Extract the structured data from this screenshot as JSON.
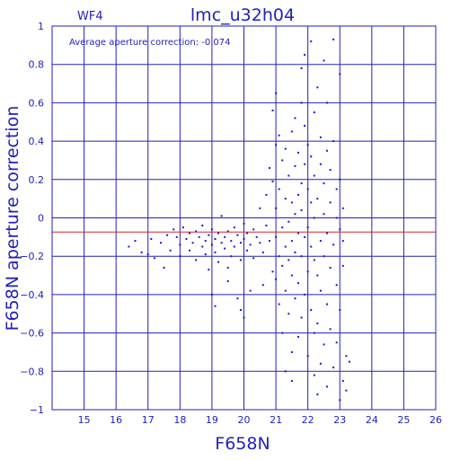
{
  "chart_data": {
    "type": "scatter",
    "title": "lmc_u32h04",
    "panel_label": "WF4",
    "annotation": "Average aperture correction: -0.074",
    "xlabel": "F658N",
    "ylabel": "F658N aperture correction",
    "xlim": [
      14,
      26
    ],
    "ylim": [
      -1,
      1
    ],
    "x_ticks": [
      15,
      16,
      17,
      18,
      19,
      20,
      21,
      22,
      23,
      24,
      25,
      26
    ],
    "y_ticks": [
      1,
      0.8,
      0.6,
      0.4,
      0.2,
      0,
      -0.2,
      -0.4,
      -0.6,
      -0.8,
      -1
    ],
    "x_tick_labels": [
      "15",
      "16",
      "17",
      "18",
      "19",
      "20",
      "21",
      "22",
      "23",
      "24",
      "25",
      "26"
    ],
    "y_tick_labels": [
      "1",
      "0.8",
      "0.6",
      "0.4",
      "0.2",
      "0",
      "−0.2",
      "−0.4",
      "−0.6",
      "−0.8",
      "−1"
    ],
    "grid": true,
    "reference_line_y": -0.074,
    "colors": {
      "axes": "#2222bb",
      "points": "#1a1acc",
      "reference_line": "#dd2222"
    },
    "series": [
      {
        "points": [
          [
            16.4,
            -0.15
          ],
          [
            16.6,
            -0.12
          ],
          [
            16.8,
            -0.18
          ],
          [
            17.0,
            -0.19
          ],
          [
            17.1,
            -0.11
          ],
          [
            17.2,
            -0.21
          ],
          [
            17.4,
            -0.13
          ],
          [
            17.5,
            -0.26
          ],
          [
            17.6,
            -0.09
          ],
          [
            17.7,
            -0.17
          ],
          [
            17.8,
            -0.06
          ],
          [
            17.9,
            -0.1
          ],
          [
            18.0,
            -0.14
          ],
          [
            18.0,
            -0.2
          ],
          [
            18.1,
            -0.05
          ],
          [
            18.2,
            -0.11
          ],
          [
            18.3,
            -0.08
          ],
          [
            18.3,
            -0.17
          ],
          [
            18.4,
            -0.13
          ],
          [
            18.5,
            -0.22
          ],
          [
            18.5,
            -0.07
          ],
          [
            18.6,
            -0.1
          ],
          [
            18.7,
            -0.15
          ],
          [
            18.7,
            -0.04
          ],
          [
            18.8,
            -0.12
          ],
          [
            18.8,
            -0.19
          ],
          [
            18.9,
            -0.09
          ],
          [
            18.9,
            -0.27
          ],
          [
            19.0,
            -0.06
          ],
          [
            19.0,
            -0.14
          ],
          [
            19.1,
            -0.11
          ],
          [
            19.1,
            -0.18
          ],
          [
            19.2,
            -0.08
          ],
          [
            19.2,
            -0.23
          ],
          [
            19.3,
            -0.13
          ],
          [
            19.3,
            0.01
          ],
          [
            19.4,
            -0.1
          ],
          [
            19.4,
            -0.16
          ],
          [
            19.5,
            -0.07
          ],
          [
            19.5,
            -0.26
          ],
          [
            19.6,
            -0.12
          ],
          [
            19.6,
            -0.2
          ],
          [
            19.7,
            -0.05
          ],
          [
            19.7,
            -0.15
          ],
          [
            19.8,
            -0.09
          ],
          [
            19.9,
            -0.13
          ],
          [
            19.9,
            -0.22
          ],
          [
            20.0,
            -0.03
          ],
          [
            20.0,
            -0.11
          ],
          [
            20.1,
            -0.17
          ],
          [
            20.1,
            -0.08
          ],
          [
            20.2,
            -0.14
          ],
          [
            20.3,
            -0.06
          ],
          [
            20.3,
            -0.21
          ],
          [
            20.4,
            -0.1
          ],
          [
            20.5,
            0.05
          ],
          [
            20.5,
            -0.13
          ],
          [
            20.6,
            -0.18
          ],
          [
            20.7,
            -0.04
          ],
          [
            20.8,
            -0.12
          ],
          [
            19.0,
            -0.4
          ],
          [
            19.1,
            -0.46
          ],
          [
            19.9,
            -0.48
          ],
          [
            20.0,
            -0.52
          ],
          [
            19.5,
            -0.33
          ],
          [
            19.8,
            -0.42
          ],
          [
            20.6,
            -0.35
          ],
          [
            20.2,
            -0.38
          ],
          [
            20.7,
            0.12
          ],
          [
            20.8,
            0.26
          ],
          [
            20.9,
            0.19
          ],
          [
            20.9,
            -0.28
          ],
          [
            20.9,
            0.56
          ],
          [
            21.0,
            0.65
          ],
          [
            21.0,
            -0.1
          ],
          [
            21.0,
            -0.32
          ],
          [
            21.0,
            0.05
          ],
          [
            21.0,
            0.38
          ],
          [
            21.1,
            -0.2
          ],
          [
            21.1,
            0.15
          ],
          [
            21.1,
            -0.45
          ],
          [
            21.1,
            0.43
          ],
          [
            21.2,
            -0.05
          ],
          [
            21.2,
            -0.25
          ],
          [
            21.2,
            0.3
          ],
          [
            21.2,
            -0.6
          ],
          [
            21.3,
            0.1
          ],
          [
            21.3,
            -0.15
          ],
          [
            21.3,
            -0.38
          ],
          [
            21.3,
            0.36
          ],
          [
            21.3,
            -0.8
          ],
          [
            21.4,
            -0.02
          ],
          [
            21.4,
            -0.22
          ],
          [
            21.4,
            0.22
          ],
          [
            21.4,
            -0.5
          ],
          [
            21.5,
            0.08
          ],
          [
            21.5,
            -0.12
          ],
          [
            21.5,
            -0.3
          ],
          [
            21.5,
            0.45
          ],
          [
            21.5,
            -0.7
          ],
          [
            21.5,
            -0.85
          ],
          [
            21.6,
            0.02
          ],
          [
            21.6,
            -0.18
          ],
          [
            21.6,
            0.27
          ],
          [
            21.6,
            -0.42
          ],
          [
            21.6,
            0.52
          ],
          [
            21.7,
            -0.08
          ],
          [
            21.7,
            0.12
          ],
          [
            21.7,
            -0.34
          ],
          [
            21.7,
            -0.62
          ],
          [
            21.7,
            0.34
          ],
          [
            21.8,
            0.04
          ],
          [
            21.8,
            -0.2
          ],
          [
            21.8,
            0.6
          ],
          [
            21.8,
            -0.52
          ],
          [
            21.8,
            0.18
          ],
          [
            21.8,
            0.78
          ],
          [
            21.9,
            -0.1
          ],
          [
            21.9,
            0.28
          ],
          [
            21.9,
            -0.4
          ],
          [
            21.9,
            0.48
          ],
          [
            21.9,
            0.85
          ],
          [
            22.0,
            -0.05
          ],
          [
            22.0,
            0.15
          ],
          [
            22.0,
            -0.28
          ],
          [
            22.0,
            0.38
          ],
          [
            22.0,
            -0.72
          ],
          [
            22.1,
            -0.15
          ],
          [
            22.1,
            0.08
          ],
          [
            22.1,
            0.32
          ],
          [
            22.1,
            -0.48
          ],
          [
            22.1,
            0.92
          ],
          [
            22.2,
            0.0
          ],
          [
            22.2,
            -0.22
          ],
          [
            22.2,
            0.22
          ],
          [
            22.2,
            -0.6
          ],
          [
            22.2,
            -0.82
          ],
          [
            22.2,
            0.55
          ],
          [
            22.3,
            -0.3
          ],
          [
            22.3,
            0.1
          ],
          [
            22.3,
            -0.55
          ],
          [
            22.3,
            0.68
          ],
          [
            22.3,
            -0.92
          ],
          [
            22.4,
            -0.12
          ],
          [
            22.4,
            0.28
          ],
          [
            22.4,
            -0.38
          ],
          [
            22.4,
            0.42
          ],
          [
            22.4,
            -0.76
          ],
          [
            22.5,
            0.02
          ],
          [
            22.5,
            -0.2
          ],
          [
            22.5,
            -0.66
          ],
          [
            22.5,
            0.18
          ],
          [
            22.5,
            0.82
          ],
          [
            22.6,
            -0.08
          ],
          [
            22.6,
            0.35
          ],
          [
            22.6,
            -0.45
          ],
          [
            22.6,
            -0.88
          ],
          [
            22.6,
            0.6
          ],
          [
            22.7,
            0.08
          ],
          [
            22.7,
            -0.26
          ],
          [
            22.7,
            -0.58
          ],
          [
            22.7,
            0.25
          ],
          [
            22.8,
            -0.14
          ],
          [
            22.8,
            0.4
          ],
          [
            22.8,
            -0.78
          ],
          [
            22.8,
            0.93
          ],
          [
            22.9,
            0.0
          ],
          [
            22.9,
            -0.35
          ],
          [
            22.9,
            0.15
          ],
          [
            22.9,
            -0.65
          ],
          [
            23.0,
            -0.06
          ],
          [
            23.0,
            0.2
          ],
          [
            23.0,
            -0.48
          ],
          [
            23.0,
            -0.95
          ],
          [
            23.0,
            0.75
          ],
          [
            23.1,
            -0.12
          ],
          [
            23.1,
            -0.25
          ],
          [
            23.1,
            0.05
          ],
          [
            23.1,
            -0.85
          ],
          [
            23.2,
            -0.72
          ],
          [
            23.2,
            -0.9
          ],
          [
            23.3,
            -0.75
          ]
        ]
      }
    ]
  }
}
